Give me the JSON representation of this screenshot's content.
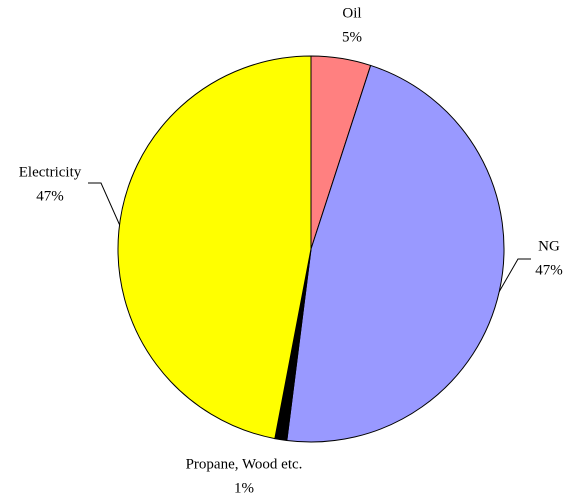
{
  "chart_data": {
    "type": "pie",
    "categories": [
      "Oil",
      "NG",
      "Propane, Wood etc.",
      "Electricity"
    ],
    "values": [
      5,
      47,
      1,
      47
    ],
    "value_labels": [
      "5%",
      "47%",
      "1%",
      "47%"
    ],
    "colors": [
      "#ff8080",
      "#9999ff",
      "#000000",
      "#ffff00"
    ]
  }
}
